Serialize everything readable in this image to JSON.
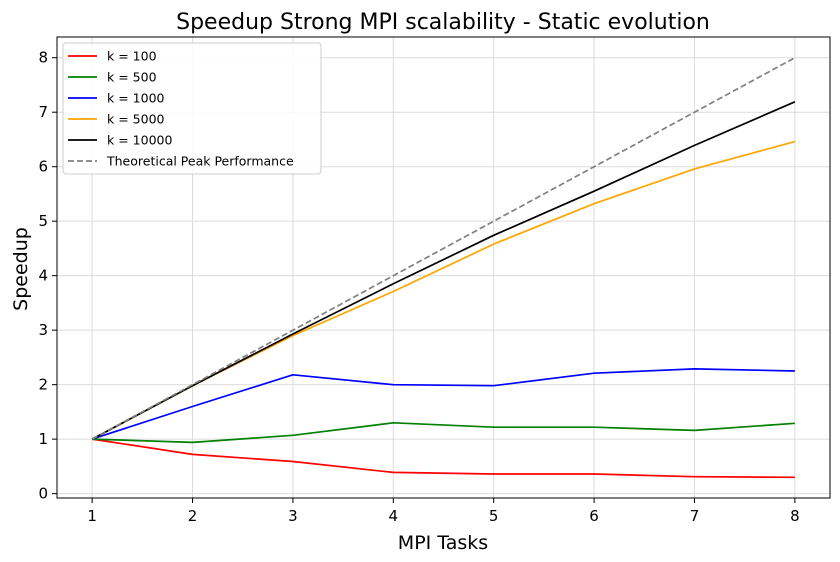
{
  "chart_data": {
    "type": "line",
    "title": "Speedup Strong MPI scalability - Static evolution",
    "xlabel": "MPI Tasks",
    "ylabel": "Speedup",
    "x": [
      1,
      2,
      3,
      4,
      5,
      6,
      7,
      8
    ],
    "xlim": [
      0.65,
      8.35
    ],
    "ylim": [
      -0.08,
      8.38
    ],
    "xticks": [
      1,
      2,
      3,
      4,
      5,
      6,
      7,
      8
    ],
    "yticks": [
      0,
      1,
      2,
      3,
      4,
      5,
      6,
      7,
      8
    ],
    "grid": true,
    "legend_position": "top-left",
    "series": [
      {
        "name": "k = 100",
        "color": "#ff0000",
        "dashed": false,
        "values": [
          1.0,
          0.72,
          0.59,
          0.39,
          0.36,
          0.36,
          0.31,
          0.3
        ]
      },
      {
        "name": "k = 500",
        "color": "#008000",
        "dashed": false,
        "values": [
          1.0,
          0.94,
          1.07,
          1.3,
          1.22,
          1.22,
          1.16,
          1.29
        ]
      },
      {
        "name": "k = 1000",
        "color": "#0000ff",
        "dashed": false,
        "values": [
          1.0,
          1.6,
          2.18,
          2.0,
          1.98,
          2.21,
          2.29,
          2.25
        ]
      },
      {
        "name": "k = 5000",
        "color": "#ffa500",
        "dashed": false,
        "values": [
          1.0,
          1.98,
          2.9,
          3.71,
          4.58,
          5.32,
          5.96,
          6.46
        ]
      },
      {
        "name": "k = 10000",
        "color": "#000000",
        "dashed": false,
        "values": [
          1.0,
          1.98,
          2.93,
          3.85,
          4.74,
          5.55,
          6.39,
          7.19
        ]
      },
      {
        "name": "Theoretical Peak Performance",
        "color": "#808080",
        "dashed": true,
        "values": [
          1,
          2,
          3,
          4,
          5,
          6,
          7,
          8
        ]
      }
    ]
  }
}
